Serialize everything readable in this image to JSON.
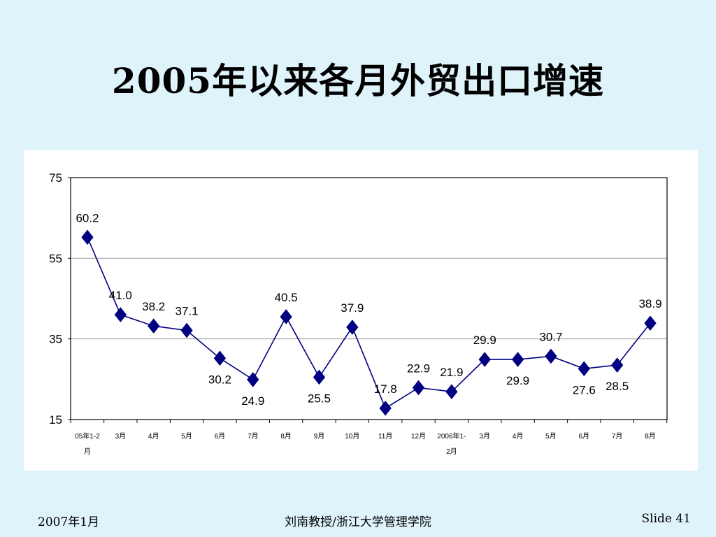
{
  "slide": {
    "title": "2005年以来各月外贸出口增速"
  },
  "footer": {
    "date": "2007年1月",
    "author": "刘南教授/浙江大学管理学院",
    "slide_number": "Slide 41"
  },
  "colors": {
    "background": "#dff3fb",
    "panel": "#ffffff",
    "series": "#000080",
    "gridline": "#888888"
  },
  "chart_data": {
    "type": "line",
    "categories": [
      [
        "05年1-2",
        "月"
      ],
      [
        "3月"
      ],
      [
        "4月"
      ],
      [
        "5月"
      ],
      [
        "6月"
      ],
      [
        "7月"
      ],
      [
        "8月"
      ],
      [
        "9月"
      ],
      [
        "10月"
      ],
      [
        "11月"
      ],
      [
        "12月"
      ],
      [
        "2006年1-",
        "2月"
      ],
      [
        "3月"
      ],
      [
        "4月"
      ],
      [
        "5月"
      ],
      [
        "6月"
      ],
      [
        "7月"
      ],
      [
        "8月"
      ]
    ],
    "series": [
      {
        "values": [
          60.2,
          41.0,
          38.2,
          37.1,
          30.2,
          24.9,
          40.5,
          25.5,
          37.9,
          17.8,
          22.9,
          21.9,
          29.9,
          29.9,
          30.7,
          27.6,
          28.5,
          38.9
        ],
        "labels": [
          "60.2",
          "41.0",
          "38.2",
          "37.1",
          "30.2",
          "24.9",
          "40.5",
          "25.5",
          "37.9",
          "17.8",
          "22.9",
          "21.9",
          "29.9",
          "29.9",
          "30.7",
          "27.6",
          "28.5",
          "38.9"
        ],
        "label_positions": [
          "above",
          "above",
          "above",
          "above",
          "below",
          "below",
          "above",
          "below",
          "above",
          "above",
          "above",
          "above",
          "above",
          "below",
          "above",
          "below",
          "below",
          "above"
        ]
      }
    ],
    "ylim": [
      15,
      75
    ],
    "yticks": [
      "75",
      "55",
      "35",
      "15"
    ],
    "ytick_values": [
      75,
      55,
      35,
      15
    ],
    "gridlines": [
      55,
      35
    ],
    "marker": "diamond",
    "legend": "none",
    "title": "",
    "xlabel": "",
    "ylabel": ""
  }
}
